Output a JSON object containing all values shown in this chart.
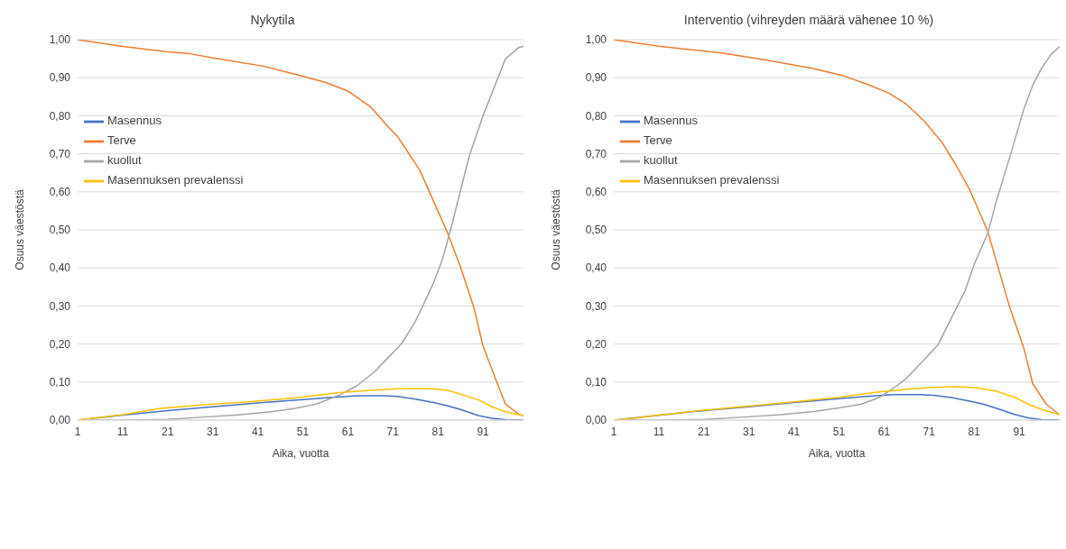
{
  "chart_data": [
    {
      "type": "line",
      "title": "Nykytila",
      "xlabel": "Aika, vuotta",
      "ylabel": "Osuus väestöstä",
      "xlim": [
        1,
        100
      ],
      "xticks": [
        1,
        11,
        21,
        31,
        41,
        51,
        61,
        71,
        81,
        91
      ],
      "ylim": [
        0,
        1
      ],
      "yticks": [
        {
          "value": 0,
          "label": "0,00"
        },
        {
          "value": 0.1,
          "label": "0,10"
        },
        {
          "value": 0.2,
          "label": "0,20"
        },
        {
          "value": 0.3,
          "label": "0,30"
        },
        {
          "value": 0.4,
          "label": "0,40"
        },
        {
          "value": 0.5,
          "label": "0,50"
        },
        {
          "value": 0.6,
          "label": "0,60"
        },
        {
          "value": 0.7,
          "label": "0,70"
        },
        {
          "value": 0.8,
          "label": "0,80"
        },
        {
          "value": 0.9,
          "label": "0,90"
        },
        {
          "value": 1,
          "label": "1,00"
        }
      ],
      "grid": "y",
      "legend": "top left",
      "marker": "none",
      "line_style": "solid",
      "series": [
        {
          "name": "Masennus",
          "color": "#4472c4",
          "x": [
            1,
            11,
            21,
            31,
            41,
            51,
            57,
            63,
            69,
            72,
            76,
            80,
            83,
            86,
            90,
            93,
            96,
            100
          ],
          "values": [
            0,
            0.013,
            0.025,
            0.035,
            0.045,
            0.054,
            0.059,
            0.064,
            0.064,
            0.062,
            0.055,
            0.046,
            0.038,
            0.028,
            0.012,
            0.005,
            0.001,
            0
          ]
        },
        {
          "name": "Terve",
          "color": "#ed7d31",
          "x": [
            1,
            11,
            21,
            26,
            31,
            42,
            49,
            56,
            61,
            66,
            70,
            72,
            77,
            80,
            83,
            86,
            89,
            91,
            94,
            96,
            99,
            100
          ],
          "values": [
            1,
            0.982,
            0.968,
            0.963,
            0.952,
            0.931,
            0.91,
            0.888,
            0.865,
            0.824,
            0.77,
            0.746,
            0.656,
            0.576,
            0.496,
            0.403,
            0.295,
            0.195,
            0.102,
            0.042,
            0.015,
            0.012
          ]
        },
        {
          "name": "kuollut",
          "color": "#a5a5a5",
          "x": [
            1,
            11,
            21,
            29,
            36,
            44,
            49,
            54,
            59,
            63,
            67,
            70,
            73,
            76,
            78,
            80,
            82,
            84,
            86,
            88,
            91,
            94,
            96,
            99,
            100
          ],
          "values": [
            0,
            0,
            0.002,
            0.008,
            0.013,
            0.022,
            0.03,
            0.042,
            0.065,
            0.09,
            0.128,
            0.165,
            0.202,
            0.26,
            0.309,
            0.36,
            0.423,
            0.509,
            0.603,
            0.696,
            0.8,
            0.89,
            0.95,
            0.98,
            0.982
          ]
        },
        {
          "name": "Masennuksen prevalenssi",
          "color": "#ffc000",
          "x": [
            1,
            11,
            19,
            29,
            39,
            49,
            59,
            66,
            73,
            79,
            83,
            86,
            90,
            93,
            96,
            100
          ],
          "values": [
            0,
            0.014,
            0.03,
            0.04,
            0.048,
            0.058,
            0.072,
            0.078,
            0.083,
            0.083,
            0.079,
            0.068,
            0.053,
            0.035,
            0.022,
            0.012
          ]
        }
      ]
    },
    {
      "type": "line",
      "title": "Interventio (vihreyden määrä vähenee 10 %)",
      "xlabel": "Aika, vuotta",
      "ylabel": "Osuus väestöstä",
      "xlim": [
        1,
        100
      ],
      "xticks": [
        1,
        11,
        21,
        31,
        41,
        51,
        61,
        71,
        81,
        91
      ],
      "ylim": [
        0,
        1
      ],
      "yticks": [
        {
          "value": 0,
          "label": "0,00"
        },
        {
          "value": 0.1,
          "label": "0,10"
        },
        {
          "value": 0.2,
          "label": "0,20"
        },
        {
          "value": 0.3,
          "label": "0,30"
        },
        {
          "value": 0.4,
          "label": "0,40"
        },
        {
          "value": 0.5,
          "label": "0,50"
        },
        {
          "value": 0.6,
          "label": "0,60"
        },
        {
          "value": 0.7,
          "label": "0,70"
        },
        {
          "value": 0.8,
          "label": "0,80"
        },
        {
          "value": 0.9,
          "label": "0,90"
        },
        {
          "value": 1,
          "label": "1,00"
        }
      ],
      "grid": "y",
      "legend": "top left",
      "marker": "none",
      "line_style": "solid",
      "series": [
        {
          "name": "Masennus",
          "color": "#4472c4",
          "x": [
            1,
            21,
            31,
            41,
            51,
            57,
            63,
            69,
            72,
            76,
            80,
            83,
            86,
            90,
            93,
            96,
            100
          ],
          "values": [
            0,
            0.025,
            0.035,
            0.046,
            0.056,
            0.062,
            0.067,
            0.067,
            0.065,
            0.059,
            0.05,
            0.042,
            0.031,
            0.015,
            0.006,
            0.001,
            0
          ]
        },
        {
          "name": "Terve",
          "color": "#ed7d31",
          "x": [
            1,
            11,
            25,
            35,
            45,
            52,
            57,
            62,
            66,
            70,
            74,
            77,
            80,
            84,
            86,
            89,
            92,
            94,
            97,
            100
          ],
          "values": [
            1,
            0.983,
            0.965,
            0.946,
            0.925,
            0.905,
            0.884,
            0.86,
            0.83,
            0.785,
            0.728,
            0.67,
            0.606,
            0.497,
            0.415,
            0.293,
            0.191,
            0.096,
            0.042,
            0.014
          ]
        },
        {
          "name": "kuollut",
          "color": "#a5a5a5",
          "x": [
            1,
            11,
            21,
            30,
            38,
            45,
            51,
            56,
            60,
            63,
            66,
            70,
            73,
            77,
            79,
            81,
            84,
            86,
            89,
            92,
            94,
            96,
            98,
            100
          ],
          "values": [
            0,
            0,
            0.002,
            0.008,
            0.014,
            0.022,
            0.032,
            0.042,
            0.06,
            0.083,
            0.11,
            0.16,
            0.198,
            0.293,
            0.34,
            0.409,
            0.49,
            0.578,
            0.694,
            0.816,
            0.88,
            0.925,
            0.96,
            0.982
          ]
        },
        {
          "name": "Masennuksen prevalenssi",
          "color": "#ffc000",
          "x": [
            1,
            5,
            11,
            21,
            31,
            41,
            51,
            59,
            66,
            72,
            77,
            82,
            86,
            90,
            93,
            96,
            100
          ],
          "values": [
            0,
            0.004,
            0.013,
            0.026,
            0.037,
            0.048,
            0.06,
            0.073,
            0.081,
            0.086,
            0.088,
            0.084,
            0.076,
            0.06,
            0.042,
            0.028,
            0.014
          ]
        }
      ]
    }
  ]
}
